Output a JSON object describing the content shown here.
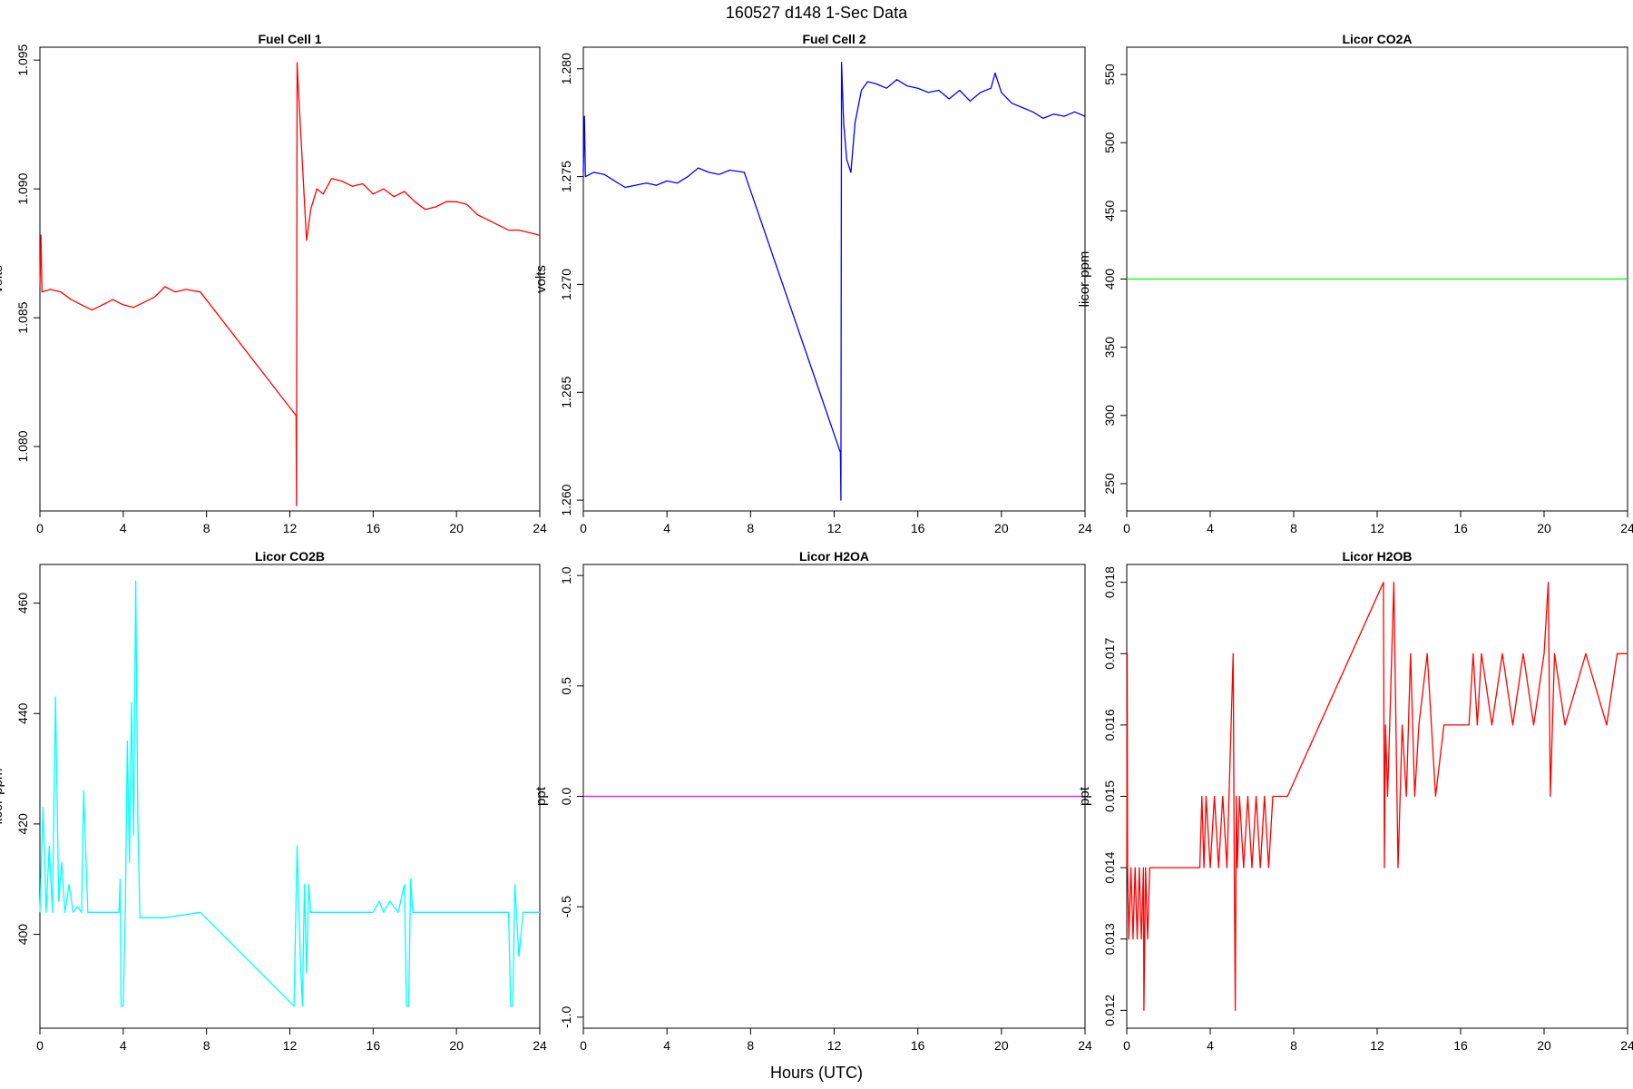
{
  "figure": {
    "title": "160527   d148   1-Sec Data",
    "xlabel": "Hours (UTC)"
  },
  "chart_data": [
    {
      "type": "line",
      "title": "Fuel Cell 1",
      "xlabel": "",
      "ylabel": "volts",
      "color": "#ff0000",
      "xlim": [
        0,
        24
      ],
      "ylim": [
        1.0775,
        1.0955
      ],
      "xticks": [
        0,
        4,
        8,
        12,
        16,
        20,
        24
      ],
      "yticks": [
        1.08,
        1.085,
        1.09,
        1.095
      ],
      "ytick_labels": [
        "1.080",
        "1.085",
        "1.090",
        "1.095"
      ],
      "series": [
        {
          "x": [
            0,
            0.05,
            0.1,
            0.5,
            1,
            1.5,
            2,
            2.5,
            3,
            3.5,
            4,
            4.5,
            5,
            5.5,
            6,
            6.5,
            7,
            7.7,
            12.3,
            12.32,
            12.35,
            12.4,
            12.6,
            12.8,
            13.0,
            13.3,
            13.6,
            14,
            14.5,
            15,
            15.5,
            16,
            16.5,
            17,
            17.5,
            18,
            18.5,
            19,
            19.5,
            20,
            20.5,
            21,
            21.5,
            22,
            22.5,
            23,
            23.5,
            24
          ],
          "y": [
            1.0862,
            1.0882,
            1.086,
            1.0861,
            1.086,
            1.0857,
            1.0855,
            1.0853,
            1.0855,
            1.0857,
            1.0855,
            1.0854,
            1.0856,
            1.0858,
            1.0862,
            1.086,
            1.0861,
            1.086,
            1.0812,
            1.0777,
            1.0949,
            1.094,
            1.091,
            1.088,
            1.0892,
            1.09,
            1.0898,
            1.0904,
            1.0903,
            1.0901,
            1.0902,
            1.0898,
            1.09,
            1.0897,
            1.0899,
            1.0895,
            1.0892,
            1.0893,
            1.0895,
            1.0895,
            1.0894,
            1.089,
            1.0888,
            1.0886,
            1.0884,
            1.0884,
            1.0883,
            1.0882
          ]
        }
      ]
    },
    {
      "type": "line",
      "title": "Fuel Cell 2",
      "xlabel": "",
      "ylabel": "volts",
      "color": "#0000ff",
      "xlim": [
        0,
        24
      ],
      "ylim": [
        1.2595,
        1.281
      ],
      "xticks": [
        0,
        4,
        8,
        12,
        16,
        20,
        24
      ],
      "yticks": [
        1.26,
        1.265,
        1.27,
        1.275,
        1.28
      ],
      "ytick_labels": [
        "1.260",
        "1.265",
        "1.270",
        "1.275",
        "1.280"
      ],
      "series": [
        {
          "x": [
            0,
            0.05,
            0.1,
            0.5,
            1,
            1.5,
            2,
            2.5,
            3,
            3.5,
            4,
            4.5,
            5,
            5.5,
            6,
            6.5,
            7,
            7.7,
            12.3,
            12.32,
            12.35,
            12.45,
            12.6,
            12.8,
            13.0,
            13.3,
            13.6,
            14,
            14.5,
            15,
            15.5,
            16,
            16.5,
            17,
            17.5,
            18,
            18.5,
            19,
            19.5,
            19.7,
            20,
            20.5,
            21,
            21.5,
            22,
            22.5,
            23,
            23.5,
            24
          ],
          "y": [
            1.2752,
            1.2778,
            1.275,
            1.2752,
            1.2751,
            1.2748,
            1.2745,
            1.2746,
            1.2747,
            1.2746,
            1.2748,
            1.2747,
            1.275,
            1.2754,
            1.2752,
            1.2751,
            1.2753,
            1.2752,
            1.2622,
            1.26,
            1.2803,
            1.2775,
            1.2758,
            1.2752,
            1.2775,
            1.279,
            1.2794,
            1.2793,
            1.2791,
            1.2795,
            1.2792,
            1.2791,
            1.2789,
            1.279,
            1.2786,
            1.279,
            1.2785,
            1.2789,
            1.2791,
            1.2798,
            1.2789,
            1.2784,
            1.2782,
            1.278,
            1.2777,
            1.2779,
            1.2778,
            1.278,
            1.2778
          ]
        }
      ]
    },
    {
      "type": "line",
      "title": "Licor CO2A",
      "xlabel": "",
      "ylabel": "licor-ppm",
      "color": "#00ff00",
      "xlim": [
        0,
        24
      ],
      "ylim": [
        230,
        570
      ],
      "xticks": [
        0,
        4,
        8,
        12,
        16,
        20,
        24
      ],
      "yticks": [
        250,
        300,
        350,
        400,
        450,
        500,
        550
      ],
      "ytick_labels": [
        "250",
        "300",
        "350",
        "400",
        "450",
        "500",
        "550"
      ],
      "series": [
        {
          "x": [
            0,
            24
          ],
          "y": [
            400,
            400
          ]
        }
      ]
    },
    {
      "type": "line",
      "title": "Licor CO2B",
      "xlabel": "",
      "ylabel": "licor-ppm",
      "color": "#00ffff",
      "xlim": [
        0,
        24
      ],
      "ylim": [
        383,
        467
      ],
      "xticks": [
        0,
        4,
        8,
        12,
        16,
        20,
        24
      ],
      "yticks": [
        400,
        420,
        440,
        460
      ],
      "ytick_labels": [
        "400",
        "420",
        "440",
        "460"
      ],
      "series": [
        {
          "x": [
            0,
            0.15,
            0.3,
            0.45,
            0.6,
            0.75,
            0.9,
            1.05,
            1.2,
            1.4,
            1.6,
            1.8,
            2.0,
            2.1,
            2.3,
            3.0,
            3.8,
            3.85,
            3.9,
            4.0,
            4.1,
            4.2,
            4.3,
            4.4,
            4.5,
            4.6,
            4.7,
            4.8,
            5.0,
            6.0,
            7.7,
            12.2,
            12.35,
            12.5,
            12.6,
            12.7,
            12.8,
            12.9,
            13.0,
            13.2,
            14,
            15,
            16,
            16.3,
            16.5,
            16.8,
            17.2,
            17.5,
            17.6,
            17.7,
            17.8,
            17.9,
            18.0,
            18.1,
            18.3,
            19,
            20,
            21,
            22,
            22.5,
            22.6,
            22.7,
            22.8,
            23.0,
            23.2,
            24
          ],
          "y": [
            404,
            423,
            404,
            416,
            404,
            443,
            406,
            413,
            404,
            409,
            404,
            405,
            404,
            426,
            404,
            404,
            404,
            410,
            387,
            387,
            404,
            435,
            413,
            442,
            418,
            464,
            421,
            403,
            403,
            403,
            404,
            387,
            416,
            396,
            387,
            409,
            393,
            409,
            404,
            404,
            404,
            404,
            404,
            406,
            404,
            406,
            404,
            409,
            387,
            387,
            410,
            404,
            404,
            404,
            404,
            404,
            404,
            404,
            404,
            404,
            387,
            387,
            409,
            396,
            404,
            404
          ]
        }
      ]
    },
    {
      "type": "line",
      "title": "Licor H2OA",
      "xlabel": "",
      "ylabel": "ppt",
      "color": "#ff00ff",
      "xlim": [
        0,
        24
      ],
      "ylim": [
        -1.05,
        1.05
      ],
      "xticks": [
        0,
        4,
        8,
        12,
        16,
        20,
        24
      ],
      "yticks": [
        -1.0,
        -0.5,
        0.0,
        0.5,
        1.0
      ],
      "ytick_labels": [
        "-1.0",
        "-0.5",
        "0.0",
        "0.5",
        "1.0"
      ],
      "series": [
        {
          "x": [
            0,
            24
          ],
          "y": [
            0,
            0
          ]
        }
      ]
    },
    {
      "type": "line",
      "title": "Licor H2OB",
      "xlabel": "",
      "ylabel": "ppt",
      "color": "#ff0000",
      "xlim": [
        0,
        24
      ],
      "ylim": [
        0.01175,
        0.01825
      ],
      "xticks": [
        0,
        4,
        8,
        12,
        16,
        20,
        24
      ],
      "yticks": [
        0.012,
        0.013,
        0.014,
        0.015,
        0.016,
        0.017,
        0.018
      ],
      "ytick_labels": [
        "0.012",
        "0.013",
        "0.014",
        "0.015",
        "0.016",
        "0.017",
        "0.018"
      ],
      "series": [
        {
          "x": [
            0,
            0.02,
            0.04,
            0.1,
            0.2,
            0.3,
            0.4,
            0.5,
            0.6,
            0.7,
            0.8,
            0.82,
            0.9,
            1.0,
            1.1,
            1.3,
            1.6,
            2.0,
            2.5,
            3.0,
            3.5,
            3.6,
            3.7,
            3.8,
            4.0,
            4.2,
            4.4,
            4.6,
            4.8,
            5.0,
            5.1,
            5.15,
            5.2,
            5.25,
            5.3,
            5.4,
            5.6,
            5.8,
            6.0,
            6.2,
            6.4,
            6.6,
            6.8,
            7.0,
            7.2,
            7.7,
            12.3,
            12.35,
            12.4,
            12.5,
            12.6,
            12.8,
            13.0,
            13.2,
            13.4,
            13.6,
            13.8,
            14.0,
            14.4,
            14.8,
            15.2,
            15.6,
            16.0,
            16.4,
            16.6,
            16.8,
            17.0,
            17.5,
            18.0,
            18.5,
            19.0,
            19.5,
            20.0,
            20.2,
            20.3,
            20.5,
            21.0,
            22.0,
            23.0,
            23.5,
            24
          ],
          "y": [
            0.014,
            0.017,
            0.014,
            0.013,
            0.014,
            0.013,
            0.014,
            0.013,
            0.014,
            0.013,
            0.014,
            0.012,
            0.014,
            0.013,
            0.014,
            0.014,
            0.014,
            0.014,
            0.014,
            0.014,
            0.014,
            0.015,
            0.014,
            0.015,
            0.014,
            0.015,
            0.014,
            0.015,
            0.014,
            0.016,
            0.017,
            0.014,
            0.012,
            0.015,
            0.014,
            0.015,
            0.014,
            0.015,
            0.014,
            0.015,
            0.014,
            0.015,
            0.014,
            0.015,
            0.015,
            0.015,
            0.018,
            0.014,
            0.016,
            0.015,
            0.016,
            0.018,
            0.014,
            0.016,
            0.015,
            0.017,
            0.015,
            0.016,
            0.017,
            0.015,
            0.016,
            0.016,
            0.016,
            0.016,
            0.017,
            0.016,
            0.017,
            0.016,
            0.017,
            0.016,
            0.017,
            0.016,
            0.017,
            0.018,
            0.015,
            0.017,
            0.016,
            0.017,
            0.016,
            0.017,
            0.017
          ]
        }
      ]
    }
  ]
}
